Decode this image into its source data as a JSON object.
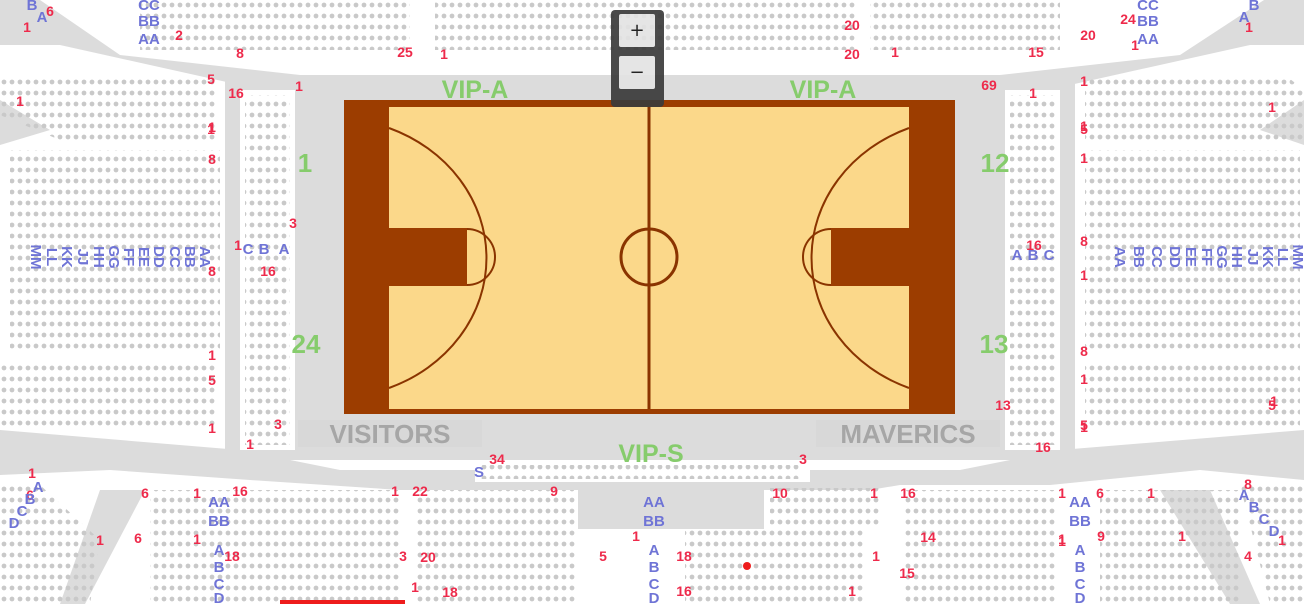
{
  "colors": {
    "aisle": "#dcdcdc",
    "seat": "#c9c9c9",
    "court_floor": "#fbd88a",
    "court_paint": "#9c3d00",
    "court_line": "#8a3400",
    "section_label": "#86cc6c",
    "seat_number": "#ee2a4b",
    "row_letter": "#6f74d6",
    "marker": "#ee1c1c"
  },
  "zoom_controls": {
    "zoom_in_label": "+",
    "zoom_out_label": "−"
  },
  "court_sections": {
    "vip_a_left": "VIP-A",
    "vip_a_right": "VIP-A",
    "vip_s": "VIP-S",
    "sec_1": "1",
    "sec_24": "24",
    "sec_12": "12",
    "sec_13": "13"
  },
  "benches": {
    "visitors": "VISITORS",
    "home": "MAVERICS"
  },
  "seat_numbers": [
    "1",
    "6",
    "2",
    "8",
    "25",
    "1",
    "20",
    "1",
    "20",
    "1",
    "15",
    "20",
    "24",
    "1",
    "5",
    "16",
    "1",
    "1",
    "1",
    "69",
    "1",
    "1",
    "1",
    "8",
    "1",
    "5",
    "1",
    "3",
    "1",
    "8",
    "16",
    "1",
    "8",
    "16",
    "1",
    "1",
    "5",
    "1",
    "8",
    "1",
    "1",
    "5",
    "1",
    "3",
    "1",
    "13",
    "16",
    "5",
    "1",
    "34",
    "3",
    "1",
    "6",
    "6",
    "1",
    "16",
    "1",
    "22",
    "9",
    "10",
    "1",
    "16",
    "1",
    "6",
    "1",
    "8",
    "1",
    "6",
    "1",
    "18",
    "3",
    "20",
    "5",
    "1",
    "18",
    "1",
    "14",
    "1",
    "9",
    "1",
    "4",
    "1",
    "1",
    "18",
    "16",
    "1",
    "15"
  ],
  "row_letters": [
    "CC",
    "BB",
    "AA",
    "CC",
    "BB",
    "AA",
    "A",
    "B",
    "A",
    "B",
    "A",
    "B",
    "C",
    "A",
    "B",
    "C",
    "AA",
    "BB",
    "CC",
    "DD",
    "EE",
    "FF",
    "GG",
    "HH",
    "JJ",
    "KK",
    "LL",
    "MM",
    "MM",
    "LL",
    "KK",
    "JJ",
    "HH",
    "GG",
    "FF",
    "EE",
    "DD",
    "CC",
    "BB",
    "AA",
    "S",
    "A",
    "B",
    "C",
    "D",
    "A",
    "B",
    "C",
    "D",
    "AA",
    "BB",
    "A",
    "B",
    "C",
    "D",
    "AA",
    "BB",
    "A",
    "B",
    "C",
    "D",
    "AA",
    "BB",
    "A",
    "B",
    "C",
    "D"
  ]
}
